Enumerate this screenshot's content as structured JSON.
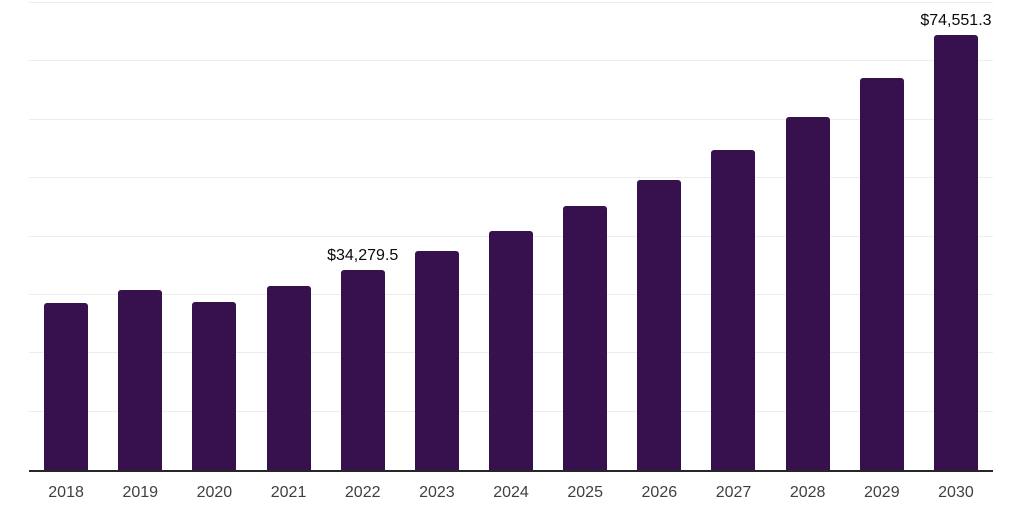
{
  "chart_data": {
    "type": "bar",
    "title": "",
    "xlabel": "",
    "ylabel": "",
    "categories": [
      "2018",
      "2019",
      "2020",
      "2021",
      "2022",
      "2023",
      "2024",
      "2025",
      "2026",
      "2027",
      "2028",
      "2029",
      "2030"
    ],
    "values": [
      28600,
      30900,
      28850,
      31600,
      34279.5,
      37500,
      41000,
      45150,
      49750,
      54750,
      60550,
      67150,
      74551.3
    ],
    "data_labels": {
      "2022": "$34,279.5",
      "2030": "$74,551.3"
    },
    "ylim": [
      0,
      80000
    ],
    "gridline_step": 10000,
    "grid": true,
    "legend": "none"
  },
  "colors": {
    "bar": "#36114D",
    "gridline": "#EDEDED",
    "axis_line": "#262626",
    "tick_label": "#3F3F3F",
    "data_label": "#0A0A0A",
    "background": "#FFFFFF"
  }
}
